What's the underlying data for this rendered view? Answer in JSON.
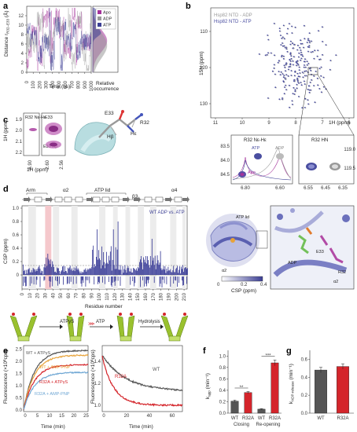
{
  "panels": {
    "a": {
      "letter": "a",
      "ylabel": "Distance r",
      "ylabel_sub": "R32–E33",
      "ylabel_unit": "(Å)",
      "xlabel": "Time (ns)",
      "side_label_1": "Relative",
      "side_label_2": "occurrence",
      "yticks": [
        "0",
        "2",
        "4",
        "6",
        "8",
        "10",
        "12"
      ],
      "xticks": [
        "0",
        "100",
        "200",
        "300",
        "400",
        "500",
        "600",
        "700",
        "800",
        "900",
        "1000"
      ],
      "legend": [
        {
          "name": "Apo",
          "color": "#a4339a"
        },
        {
          "name": "ADP",
          "color": "#9a9a9a"
        },
        {
          "name": "ATP",
          "color": "#3c3f94"
        }
      ]
    },
    "b": {
      "letter": "b",
      "legend_1": "Hsp82 NTD - ADP",
      "legend_2": "Hsp82 NTD - ATP",
      "legend_color_1": "#999999",
      "legend_color_2": "#4a4ea0",
      "yaxis_label": "15N (ppm)",
      "xaxis_label": "1H (ppm)",
      "yticks": [
        "110",
        "120",
        "130"
      ],
      "xticks": [
        "11",
        "10",
        "9",
        "8",
        "7",
        "6"
      ],
      "inset1_title": "R32 Nε-Hε",
      "inset1_atp": "ATP",
      "inset1_adp": "ADP",
      "inset1_apo": "Apo",
      "inset1_yticks": [
        "83.5",
        "84.0",
        "84.5"
      ],
      "inset1_xticks": [
        "6.80",
        "6.60"
      ],
      "inset2_title": "R32 HN",
      "inset2_yticks": [
        "119.0",
        "119.5"
      ],
      "inset2_xticks": [
        "6.55",
        "6.45",
        "6.35"
      ]
    },
    "c": {
      "letter": "c",
      "label_r32": "R32 Nε-Hε",
      "label_e33": "E33",
      "label_e33hb": "E33 Hβ",
      "ylabel": "1H (ppm)",
      "xlabel": "1H (ppm)",
      "yticks": [
        "1.9",
        "2.0",
        "2.1",
        "2.2"
      ],
      "xticks": [
        "6.90",
        "2.60",
        "2.56"
      ],
      "struct_labels": [
        "E33",
        "R32",
        "Hβ",
        "Hε"
      ]
    },
    "d": {
      "letter": "d",
      "arm": "Arm",
      "alpha2": "α2",
      "atp_lid": "ATP lid",
      "beta3": "β3",
      "alpha4": "α4",
      "legend": "WT ADP vs. ATP",
      "ylabel": "CSP (ppm)",
      "xlabel": "Residue number",
      "yticks": [
        "0",
        "0.2",
        "0.4",
        "0.6",
        "0.8",
        "1.0"
      ],
      "xticks": [
        "0",
        "10",
        "20",
        "30",
        "40",
        "50",
        "60",
        "70",
        "80",
        "90",
        "100",
        "110",
        "120",
        "130",
        "140",
        "150",
        "160",
        "170",
        "180",
        "190",
        "200",
        "210"
      ],
      "struct_labels": [
        "ATP lid",
        "ADP",
        "E33",
        "R32",
        "α2"
      ],
      "csp_label": "CSP (ppm)",
      "csp_ticks": [
        "0",
        "0.2",
        "0.4"
      ]
    },
    "e": {
      "letter": "e",
      "schema_1": "ATPγS",
      "schema_2": "ATP",
      "schema_3": "Hydrolysis",
      "ylabel": "Fluorescence (×10",
      "ylabel_exp": "6",
      "ylabel_tail": "cps)",
      "xlabel": "Time (min)",
      "left_yticks": [
        "0.0",
        "0.5",
        "1.0",
        "1.5",
        "2.0",
        "2.5"
      ],
      "left_xticks": [
        "0",
        "5",
        "10",
        "15",
        "20",
        "25"
      ],
      "right_yticks": [
        "1.0",
        "1.2",
        "1.4"
      ],
      "right_xticks": [
        "0",
        "20",
        "40",
        "60"
      ],
      "curves_left": [
        {
          "name": "WT + ATPγS",
          "color": "#555555"
        },
        {
          "name": "WT + AMP-PNP",
          "color": "#e8a33a"
        },
        {
          "name": "R32A + ATPγS",
          "color": "#d4252b"
        },
        {
          "name": "R32A + AMP-PNP",
          "color": "#6fa7d4"
        }
      ],
      "curves_right": [
        {
          "name": "WT",
          "color": "#555555"
        },
        {
          "name": "R32A",
          "color": "#d4252b"
        }
      ]
    },
    "f": {
      "letter": "f",
      "ylabel": "k",
      "ylabel_sub": "app",
      "ylabel_unit": "(min⁻¹)",
      "yticks": [
        "0.0",
        "0.2",
        "0.4",
        "0.6",
        "0.8",
        "1.0"
      ],
      "groups": [
        "Closing",
        "Re-opening"
      ],
      "stars_1": "**",
      "stars_2": "***"
    },
    "g": {
      "letter": "g",
      "ylabel": "k",
      "ylabel_sub": "ADP-release",
      "ylabel_unit": "(min⁻¹)",
      "yticks": [
        "0.0",
        "0.2",
        "0.4",
        "0.6"
      ]
    }
  },
  "chart_data": [
    {
      "panel": "f",
      "type": "bar",
      "categories": [
        "WT",
        "R32A",
        "WT",
        "R32A"
      ],
      "groups": [
        "Closing",
        "Closing",
        "Re-opening",
        "Re-opening"
      ],
      "values": [
        0.21,
        0.36,
        0.07,
        0.88
      ],
      "errors": [
        0.02,
        0.02,
        0.01,
        0.05
      ],
      "colors": [
        "#555555",
        "#d4252b",
        "#555555",
        "#d4252b"
      ],
      "ylim": [
        0,
        1.1
      ]
    },
    {
      "panel": "g",
      "type": "bar",
      "categories": [
        "WT",
        "R32A"
      ],
      "values": [
        0.48,
        0.52
      ],
      "errors": [
        0.03,
        0.03
      ],
      "colors": [
        "#555555",
        "#d4252b"
      ],
      "ylim": [
        0,
        0.7
      ]
    }
  ]
}
